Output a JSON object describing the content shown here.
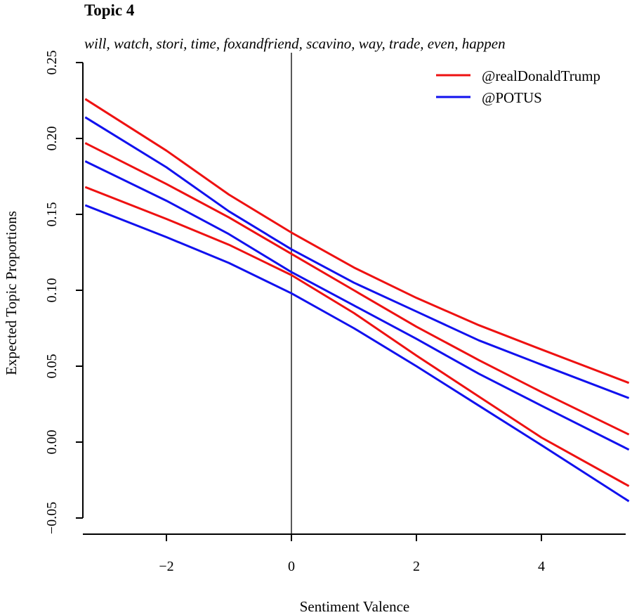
{
  "title": "Topic 4",
  "subtitle": "will, watch, stori, time, foxandfriend, scavino, way, trade, even, happen",
  "chart_data": {
    "type": "line",
    "xlabel": "Sentiment Valence",
    "ylabel": "Expected Topic Proportions",
    "xlim": [
      -3.3,
      5.4
    ],
    "ylim": [
      -0.06,
      0.255
    ],
    "x_ticks": [
      -2,
      0,
      2,
      4
    ],
    "x_tick_labels": [
      "−2",
      "0",
      "2",
      "4"
    ],
    "y_ticks": [
      -0.05,
      0.0,
      0.05,
      0.1,
      0.15,
      0.2,
      0.25
    ],
    "y_tick_labels": [
      "−0.05",
      "0.00",
      "0.05",
      "0.10",
      "0.15",
      "0.20",
      "0.25"
    ],
    "vline_x": 0,
    "grid": false,
    "legend_position": "top-right",
    "series": [
      {
        "name": "@realDonaldTrump",
        "color": "#ee1111",
        "x": [
          -3.3,
          -2,
          -1,
          0,
          1,
          2,
          3,
          4,
          5.4
        ],
        "estimate": [
          0.197,
          0.17,
          0.148,
          0.124,
          0.1,
          0.076,
          0.054,
          0.033,
          0.005
        ],
        "upper": [
          0.226,
          0.192,
          0.163,
          0.138,
          0.115,
          0.095,
          0.077,
          0.061,
          0.039
        ],
        "lower": [
          0.168,
          0.147,
          0.13,
          0.11,
          0.085,
          0.057,
          0.03,
          0.003,
          -0.029
        ]
      },
      {
        "name": "@POTUS",
        "color": "#1111ee",
        "x": [
          -3.3,
          -2,
          -1,
          0,
          1,
          2,
          3,
          4,
          5.4
        ],
        "estimate": [
          0.185,
          0.159,
          0.137,
          0.112,
          0.09,
          0.068,
          0.045,
          0.024,
          -0.005
        ],
        "upper": [
          0.214,
          0.181,
          0.152,
          0.127,
          0.105,
          0.086,
          0.067,
          0.051,
          0.029
        ],
        "lower": [
          0.156,
          0.135,
          0.118,
          0.098,
          0.075,
          0.05,
          0.024,
          -0.002,
          -0.039
        ]
      }
    ]
  }
}
